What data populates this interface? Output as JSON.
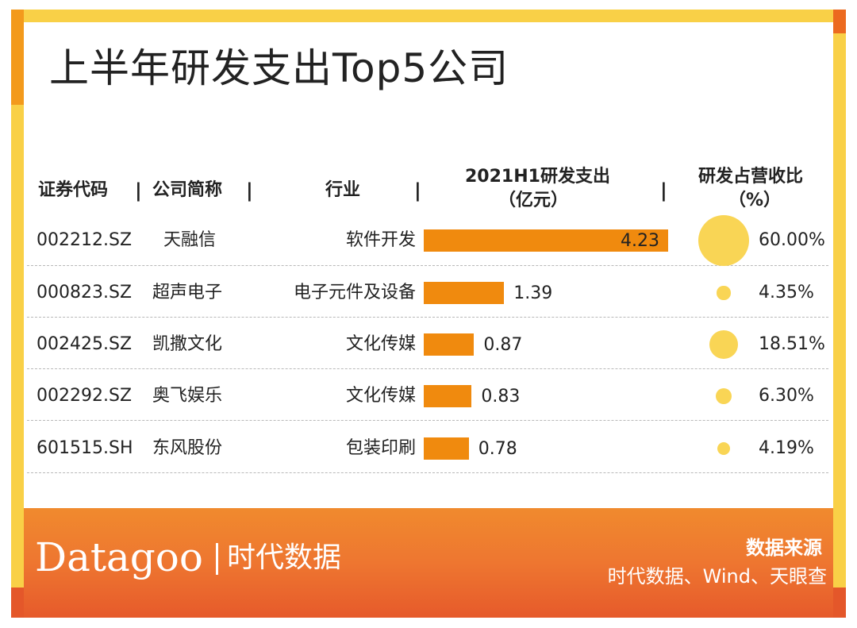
{
  "title": "上半年研发支出Top5公司",
  "header": {
    "code": "证券代码",
    "name": "公司简称",
    "industry": "行业",
    "spend_line1": "2021H1研发支出",
    "spend_line2": "（亿元）",
    "ratio_line1": "研发占营收比",
    "ratio_line2": "（%）",
    "separator": "|"
  },
  "chart_data": {
    "type": "bar",
    "categories": [
      "天融信",
      "超声电子",
      "凯撒文化",
      "奥飞娱乐",
      "东风股份"
    ],
    "series": [
      {
        "values": [
          4.23,
          1.39,
          0.87,
          0.83,
          0.78
        ],
        "labels": [
          "4.23",
          "1.39",
          "0.87",
          "0.83",
          "0.78"
        ]
      },
      {
        "values": [
          60.0,
          4.35,
          18.51,
          6.3,
          4.19
        ],
        "labels": [
          "60.00%",
          "4.35%",
          "18.51%",
          "6.30%",
          "4.19%"
        ]
      }
    ],
    "title": "",
    "legend": "none",
    "grid": false
  },
  "rows": [
    {
      "code": "002212.SZ",
      "name": "天融信",
      "industry": "软件开发"
    },
    {
      "code": "000823.SZ",
      "name": "超声电子",
      "industry": "电子元件及设备"
    },
    {
      "code": "002425.SZ",
      "name": "凯撒文化",
      "industry": "文化传媒"
    },
    {
      "code": "002292.SZ",
      "name": "奥飞娱乐",
      "industry": "文化传媒"
    },
    {
      "code": "601515.SH",
      "name": "东风股份",
      "industry": "包装印刷"
    }
  ],
  "colors": {
    "bar": "#f08a0e",
    "bubble": "#f9d555",
    "frame": "#f9d047",
    "footer": "#ee7630"
  },
  "footer": {
    "logo_latin": "Datagoo",
    "logo_cn": "时代数据",
    "source_title": "数据来源",
    "source_body": "时代数据、Wind、天眼查"
  }
}
